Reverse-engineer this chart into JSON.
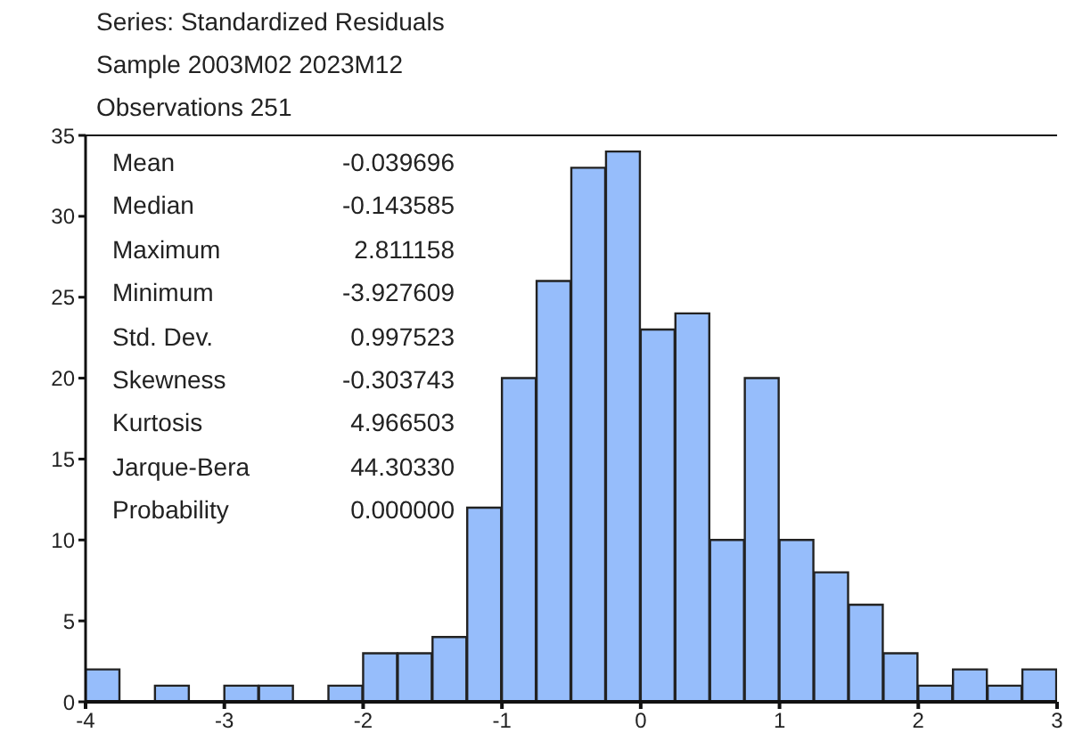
{
  "chart_data": {
    "type": "histogram",
    "title": "Series: Standardized Residuals",
    "subtitle": "Sample 2003M02 2023M12",
    "annotations": [
      "Observations 251",
      "Mean",
      "-0.039696",
      "Median",
      "-0.143585",
      "Maximum",
      "2.811158",
      "Minimum",
      "-3.927609",
      "Std. Dev.",
      "0.997523",
      "Skewness",
      "-0.303743",
      "Kurtosis",
      "4.966503",
      "Jarque-Bera",
      "44.30330",
      "Probability",
      "0.000000"
    ],
    "bins": [
      -4,
      -3.75,
      -3.5,
      -3.25,
      -3,
      -2.75,
      -2.5,
      -2.25,
      -2,
      -1.75,
      -1.5,
      -1.25,
      -1,
      -0.75,
      -0.5,
      -0.25,
      0,
      0.25,
      0.5,
      0.75,
      1,
      1.25,
      1.5,
      1.75,
      2,
      2.25,
      2.5,
      2.75,
      3
    ],
    "values": [
      2,
      0,
      1,
      0,
      1,
      1,
      0,
      1,
      3,
      3,
      4,
      12,
      20,
      26,
      33,
      34,
      23,
      24,
      10,
      20,
      10,
      8,
      6,
      3,
      1,
      2,
      1,
      2
    ],
    "color": "#96bdfb",
    "xlim": [
      -4,
      3
    ],
    "xticks": [
      -4,
      -3,
      -2,
      -1,
      0,
      1,
      2,
      3
    ],
    "ylim": [
      0,
      35
    ],
    "yticks": [
      0,
      5,
      10,
      15,
      20,
      25,
      30,
      35
    ],
    "grid": false,
    "legend": false
  }
}
